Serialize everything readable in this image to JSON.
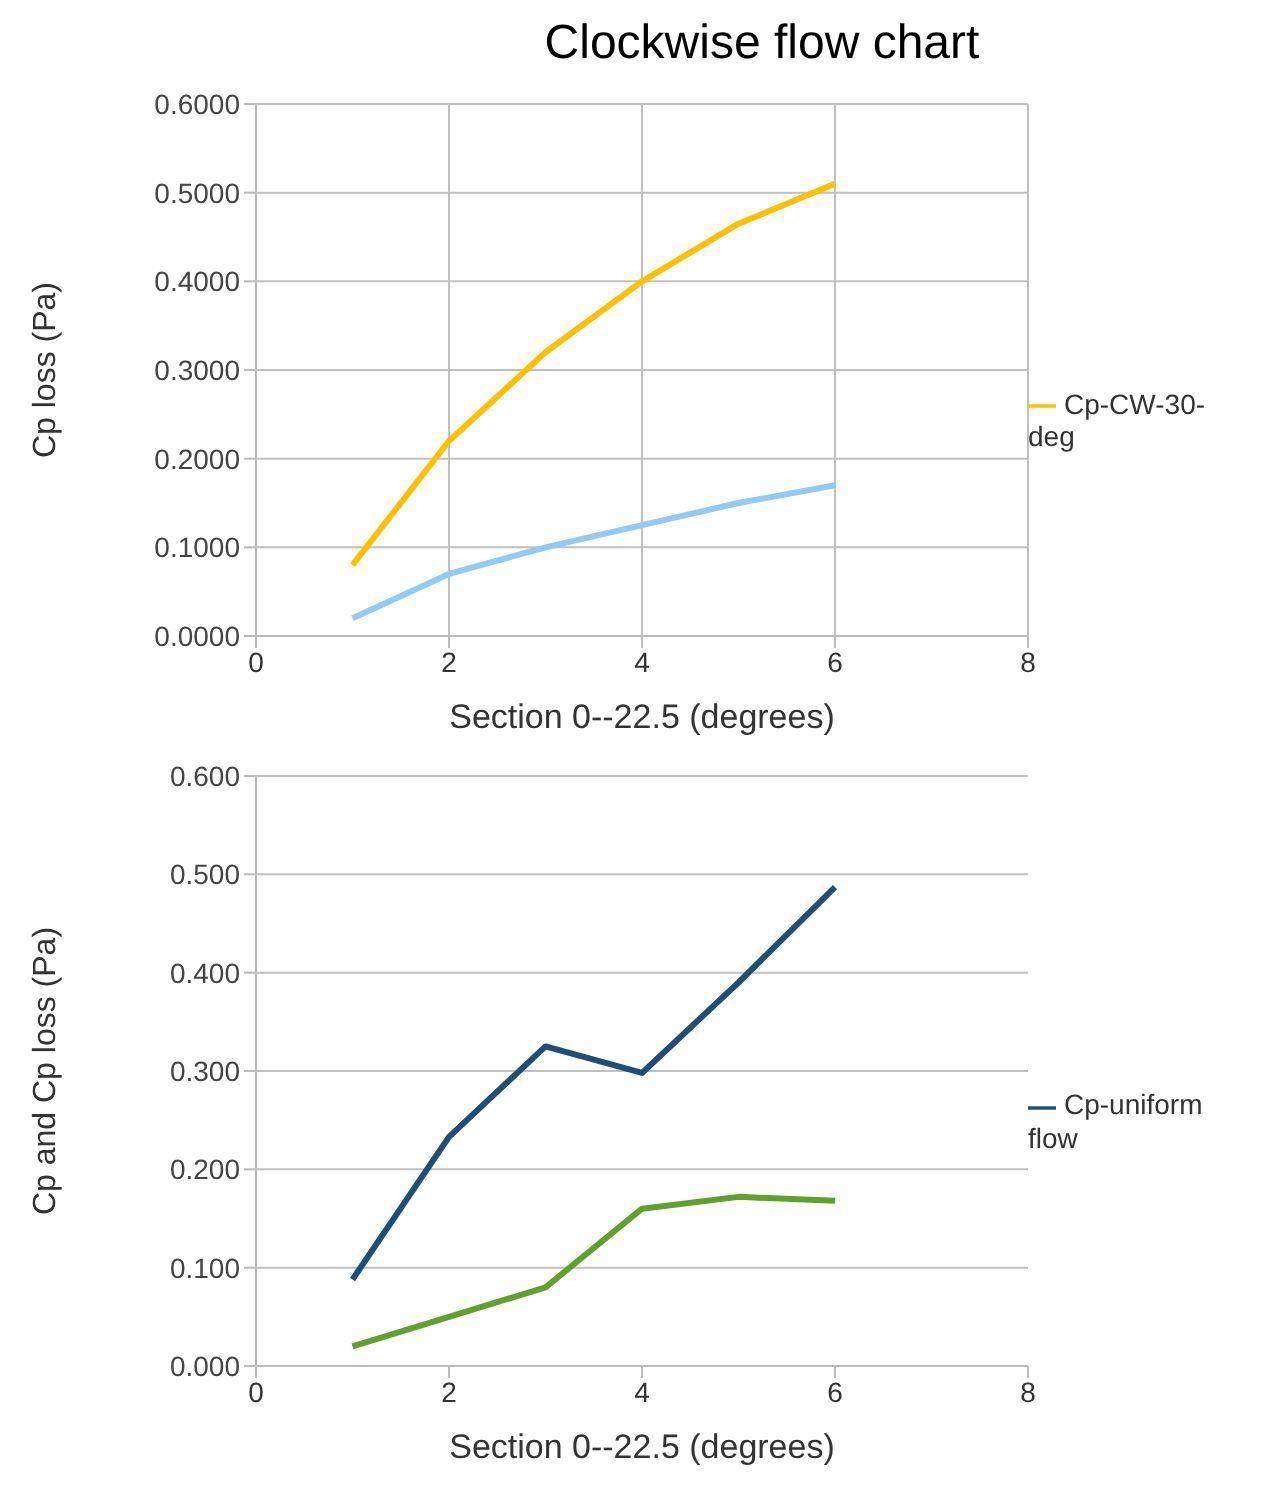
{
  "chart_data": [
    {
      "type": "line",
      "title": "Clockwise flow chart",
      "xlabel": "Section 0--22.5  (degrees)",
      "ylabel": "Cp loss  (Pa)",
      "x": [
        1,
        2,
        3,
        4,
        5,
        6
      ],
      "series": [
        {
          "name": "Cp-CW-30-deg",
          "color": "#ffc000",
          "values": [
            0.08,
            0.22,
            0.32,
            0.4,
            0.465,
            0.51
          ]
        },
        {
          "color": "#8fcbf5",
          "values": [
            0.02,
            0.07,
            0.1,
            0.125,
            0.15,
            0.17
          ]
        }
      ],
      "xlim": [
        0,
        8
      ],
      "xticks": [
        0,
        2,
        4,
        6,
        8
      ],
      "ylim": [
        0,
        0.6
      ],
      "yticks": [
        {
          "value": 0,
          "label": "0.0000"
        },
        {
          "value": 0.1,
          "label": "0.1000"
        },
        {
          "value": 0.2,
          "label": "0.2000"
        },
        {
          "value": 0.3,
          "label": "0.3000"
        },
        {
          "value": 0.4,
          "label": "0.4000"
        },
        {
          "value": 0.5,
          "label": "0.5000"
        },
        {
          "value": 0.6,
          "label": "0.6000"
        }
      ],
      "grid": true,
      "legend": "right",
      "marker": "none",
      "line_style": "solid"
    },
    {
      "type": "line",
      "xlabel": "Section 0--22.5 (degrees)",
      "ylabel": "Cp and Cp loss  (Pa)",
      "x": [
        1,
        2,
        3,
        4,
        5,
        6
      ],
      "series": [
        {
          "name": "Cp-uniform flow",
          "color": "#1f4e79",
          "values": [
            0.088,
            0.233,
            0.325,
            0.298,
            0.39,
            0.487
          ]
        },
        {
          "color": "#5fa12a",
          "values": [
            0.02,
            0.05,
            0.08,
            0.16,
            0.172,
            0.168
          ]
        }
      ],
      "xlim": [
        0,
        8
      ],
      "xticks": [
        0,
        2,
        4,
        6,
        8
      ],
      "ylim": [
        0,
        0.6
      ],
      "yticks": [
        {
          "value": 0,
          "label": "0.000"
        },
        {
          "value": 0.1,
          "label": "0.100"
        },
        {
          "value": 0.2,
          "label": "0.200"
        },
        {
          "value": 0.3,
          "label": "0.300"
        },
        {
          "value": 0.4,
          "label": "0.400"
        },
        {
          "value": 0.5,
          "label": "0.500"
        },
        {
          "value": 0.6,
          "label": "0.600"
        }
      ],
      "grid": "y",
      "legend": "right",
      "marker": "none",
      "line_style": "solid"
    }
  ]
}
